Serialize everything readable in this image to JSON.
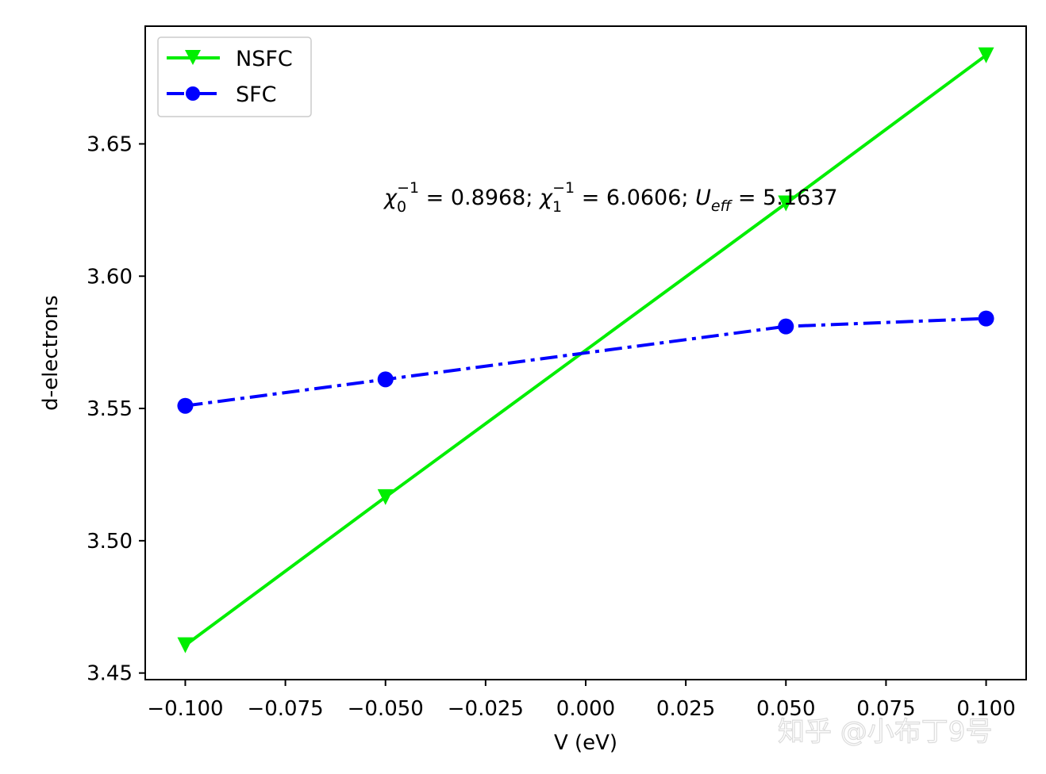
{
  "chart_data": {
    "type": "line",
    "xlabel": "V (eV)",
    "ylabel": "d-electrons",
    "xlim": [
      -0.11,
      0.11
    ],
    "ylim": [
      3.4475,
      3.6945
    ],
    "xticks": [
      -0.1,
      -0.075,
      -0.05,
      -0.025,
      0.0,
      0.025,
      0.05,
      0.075,
      0.1
    ],
    "xtick_labels": [
      "−0.100",
      "−0.075",
      "−0.050",
      "−0.025",
      "0.000",
      "0.025",
      "0.050",
      "0.075",
      "0.100"
    ],
    "yticks": [
      3.45,
      3.5,
      3.55,
      3.6,
      3.65
    ],
    "ytick_labels": [
      "3.45",
      "3.50",
      "3.55",
      "3.60",
      "3.65"
    ],
    "grid": false,
    "legend_placement": "upper-left",
    "x": [
      -0.1,
      -0.05,
      0.05,
      0.1
    ],
    "series": [
      {
        "name": "NSFC",
        "values": [
          3.4605,
          3.5165,
          3.6275,
          3.6835
        ],
        "color": "#00ee00",
        "linestyle": "solid",
        "marker": "triangle-down"
      },
      {
        "name": "SFC",
        "values": [
          3.551,
          3.561,
          3.581,
          3.584
        ],
        "color": "#0000ff",
        "linestyle": "dash-dot",
        "marker": "circle"
      }
    ],
    "annotation": {
      "chi0_label": "χ",
      "chi0_sub": "0",
      "chi0_sup": "−1",
      "chi0_value": " = 0.8968; ",
      "chi1_label": "χ",
      "chi1_sub": "1",
      "chi1_sup": "−1",
      "chi1_value": " = 6.0606; ",
      "ueff_label": "U",
      "ueff_sub": "eff",
      "ueff_value": " = 5.1637"
    }
  },
  "watermark": {
    "text": "知乎 @小布丁9号"
  }
}
